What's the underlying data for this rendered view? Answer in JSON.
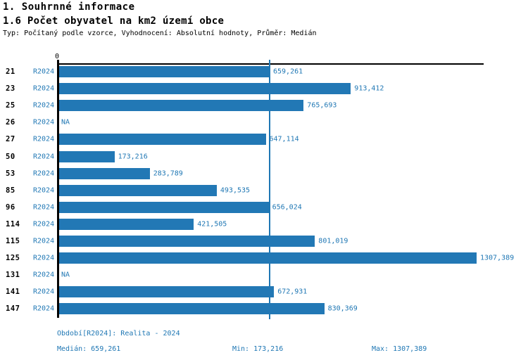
{
  "header": {
    "section_title": "1. Souhrnné informace",
    "chart_title": "1.6 Počet obyvatel na km2 území obce",
    "meta": "Typ: Počítaný podle vzorce, Vyhodnocení: Absolutní hodnoty, Průměr: Medián"
  },
  "chart_data": {
    "type": "bar",
    "orientation": "horizontal",
    "title": "1.6 Počet obyvatel na km2 území obce",
    "series_label": "R2024",
    "categories": [
      "21",
      "23",
      "25",
      "26",
      "27",
      "50",
      "53",
      "85",
      "96",
      "114",
      "115",
      "125",
      "131",
      "141",
      "147"
    ],
    "rows": [
      {
        "category": "21",
        "period": "R2024",
        "value": 659261,
        "label": "659,261"
      },
      {
        "category": "23",
        "period": "R2024",
        "value": 913412,
        "label": "913,412"
      },
      {
        "category": "25",
        "period": "R2024",
        "value": 765693,
        "label": "765,693"
      },
      {
        "category": "26",
        "period": "R2024",
        "value": null,
        "label": "NA"
      },
      {
        "category": "27",
        "period": "R2024",
        "value": 647114,
        "label": "647,114"
      },
      {
        "category": "50",
        "period": "R2024",
        "value": 173216,
        "label": "173,216"
      },
      {
        "category": "53",
        "period": "R2024",
        "value": 283789,
        "label": "283,789"
      },
      {
        "category": "85",
        "period": "R2024",
        "value": 493535,
        "label": "493,535"
      },
      {
        "category": "96",
        "period": "R2024",
        "value": 656024,
        "label": "656,024"
      },
      {
        "category": "114",
        "period": "R2024",
        "value": 421505,
        "label": "421,505"
      },
      {
        "category": "115",
        "period": "R2024",
        "value": 801019,
        "label": "801,019"
      },
      {
        "category": "125",
        "period": "R2024",
        "value": 1307389,
        "label": "1307,389"
      },
      {
        "category": "131",
        "period": "R2024",
        "value": null,
        "label": "NA"
      },
      {
        "category": "141",
        "period": "R2024",
        "value": 672931,
        "label": "672,931"
      },
      {
        "category": "147",
        "period": "R2024",
        "value": 830369,
        "label": "830,369"
      }
    ],
    "axis": {
      "zero_label": "0",
      "xmin": 0,
      "grid": "off",
      "legend": "none"
    },
    "median": {
      "value": 659261,
      "label": "659,261"
    },
    "min": {
      "value": 173216,
      "label": "173,216"
    },
    "max": {
      "value": 1307389,
      "label": "1307,389"
    }
  },
  "footer": {
    "period_line": "Období[R2024]: Realita - 2024",
    "median": "Medián: 659,261",
    "min": "Min: 173,216",
    "max": "Max: 1307,389"
  },
  "colors": {
    "bar": "#2278b5",
    "accent_text": "#1f77b4",
    "axis": "#000000"
  }
}
